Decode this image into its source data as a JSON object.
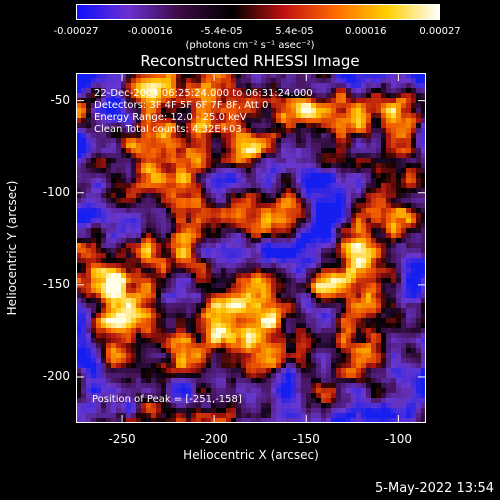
{
  "colorbar": {
    "ticks": [
      "-0.00027",
      "-0.00016",
      "-5.4e-05",
      "5.4e-05",
      "0.00016",
      "0.00027"
    ],
    "tick_values": [
      -0.00027,
      -0.00016,
      -5.4e-05,
      5.4e-05,
      0.00016,
      0.00027
    ],
    "units": "(photons cm⁻² s⁻¹ asec⁻²)",
    "colors": [
      "#1010ff",
      "#6a2fd0",
      "#3a0a40",
      "#000000",
      "#c01010",
      "#ff6a00",
      "#ffd000",
      "#ffffff"
    ]
  },
  "plot": {
    "title": "Reconstructed RHESSI Image",
    "annotations": [
      "22-Dec-2004 06:25:24.000 to 06:31:24.000",
      "Detectors: 3F 4F 5F 6F 7F 8F, Att 0",
      "Energy Range: 12.0 - 25.0 keV",
      "Clean    Total counts: 4.32E+03"
    ],
    "peak_label": "Position of Peak = [-251,-158]",
    "xlabel": "Heliocentric X (arcsec)",
    "ylabel": "Heliocentric Y (arcsec)"
  },
  "chart_data": {
    "type": "heatmap",
    "title": "Reconstructed RHESSI Image",
    "xlabel": "Heliocentric X (arcsec)",
    "ylabel": "Heliocentric Y (arcsec)",
    "xlim": [
      -275,
      -85
    ],
    "ylim": [
      -225,
      -35
    ],
    "x_ticks": [
      -250,
      -200,
      -150,
      -100
    ],
    "y_ticks": [
      -50,
      -100,
      -150,
      -200
    ],
    "colorbar_range": [
      -0.00027,
      0.00027
    ],
    "peak": [
      -251,
      -158
    ]
  },
  "footer": {
    "timestamp": "5-May-2022 13:54"
  }
}
